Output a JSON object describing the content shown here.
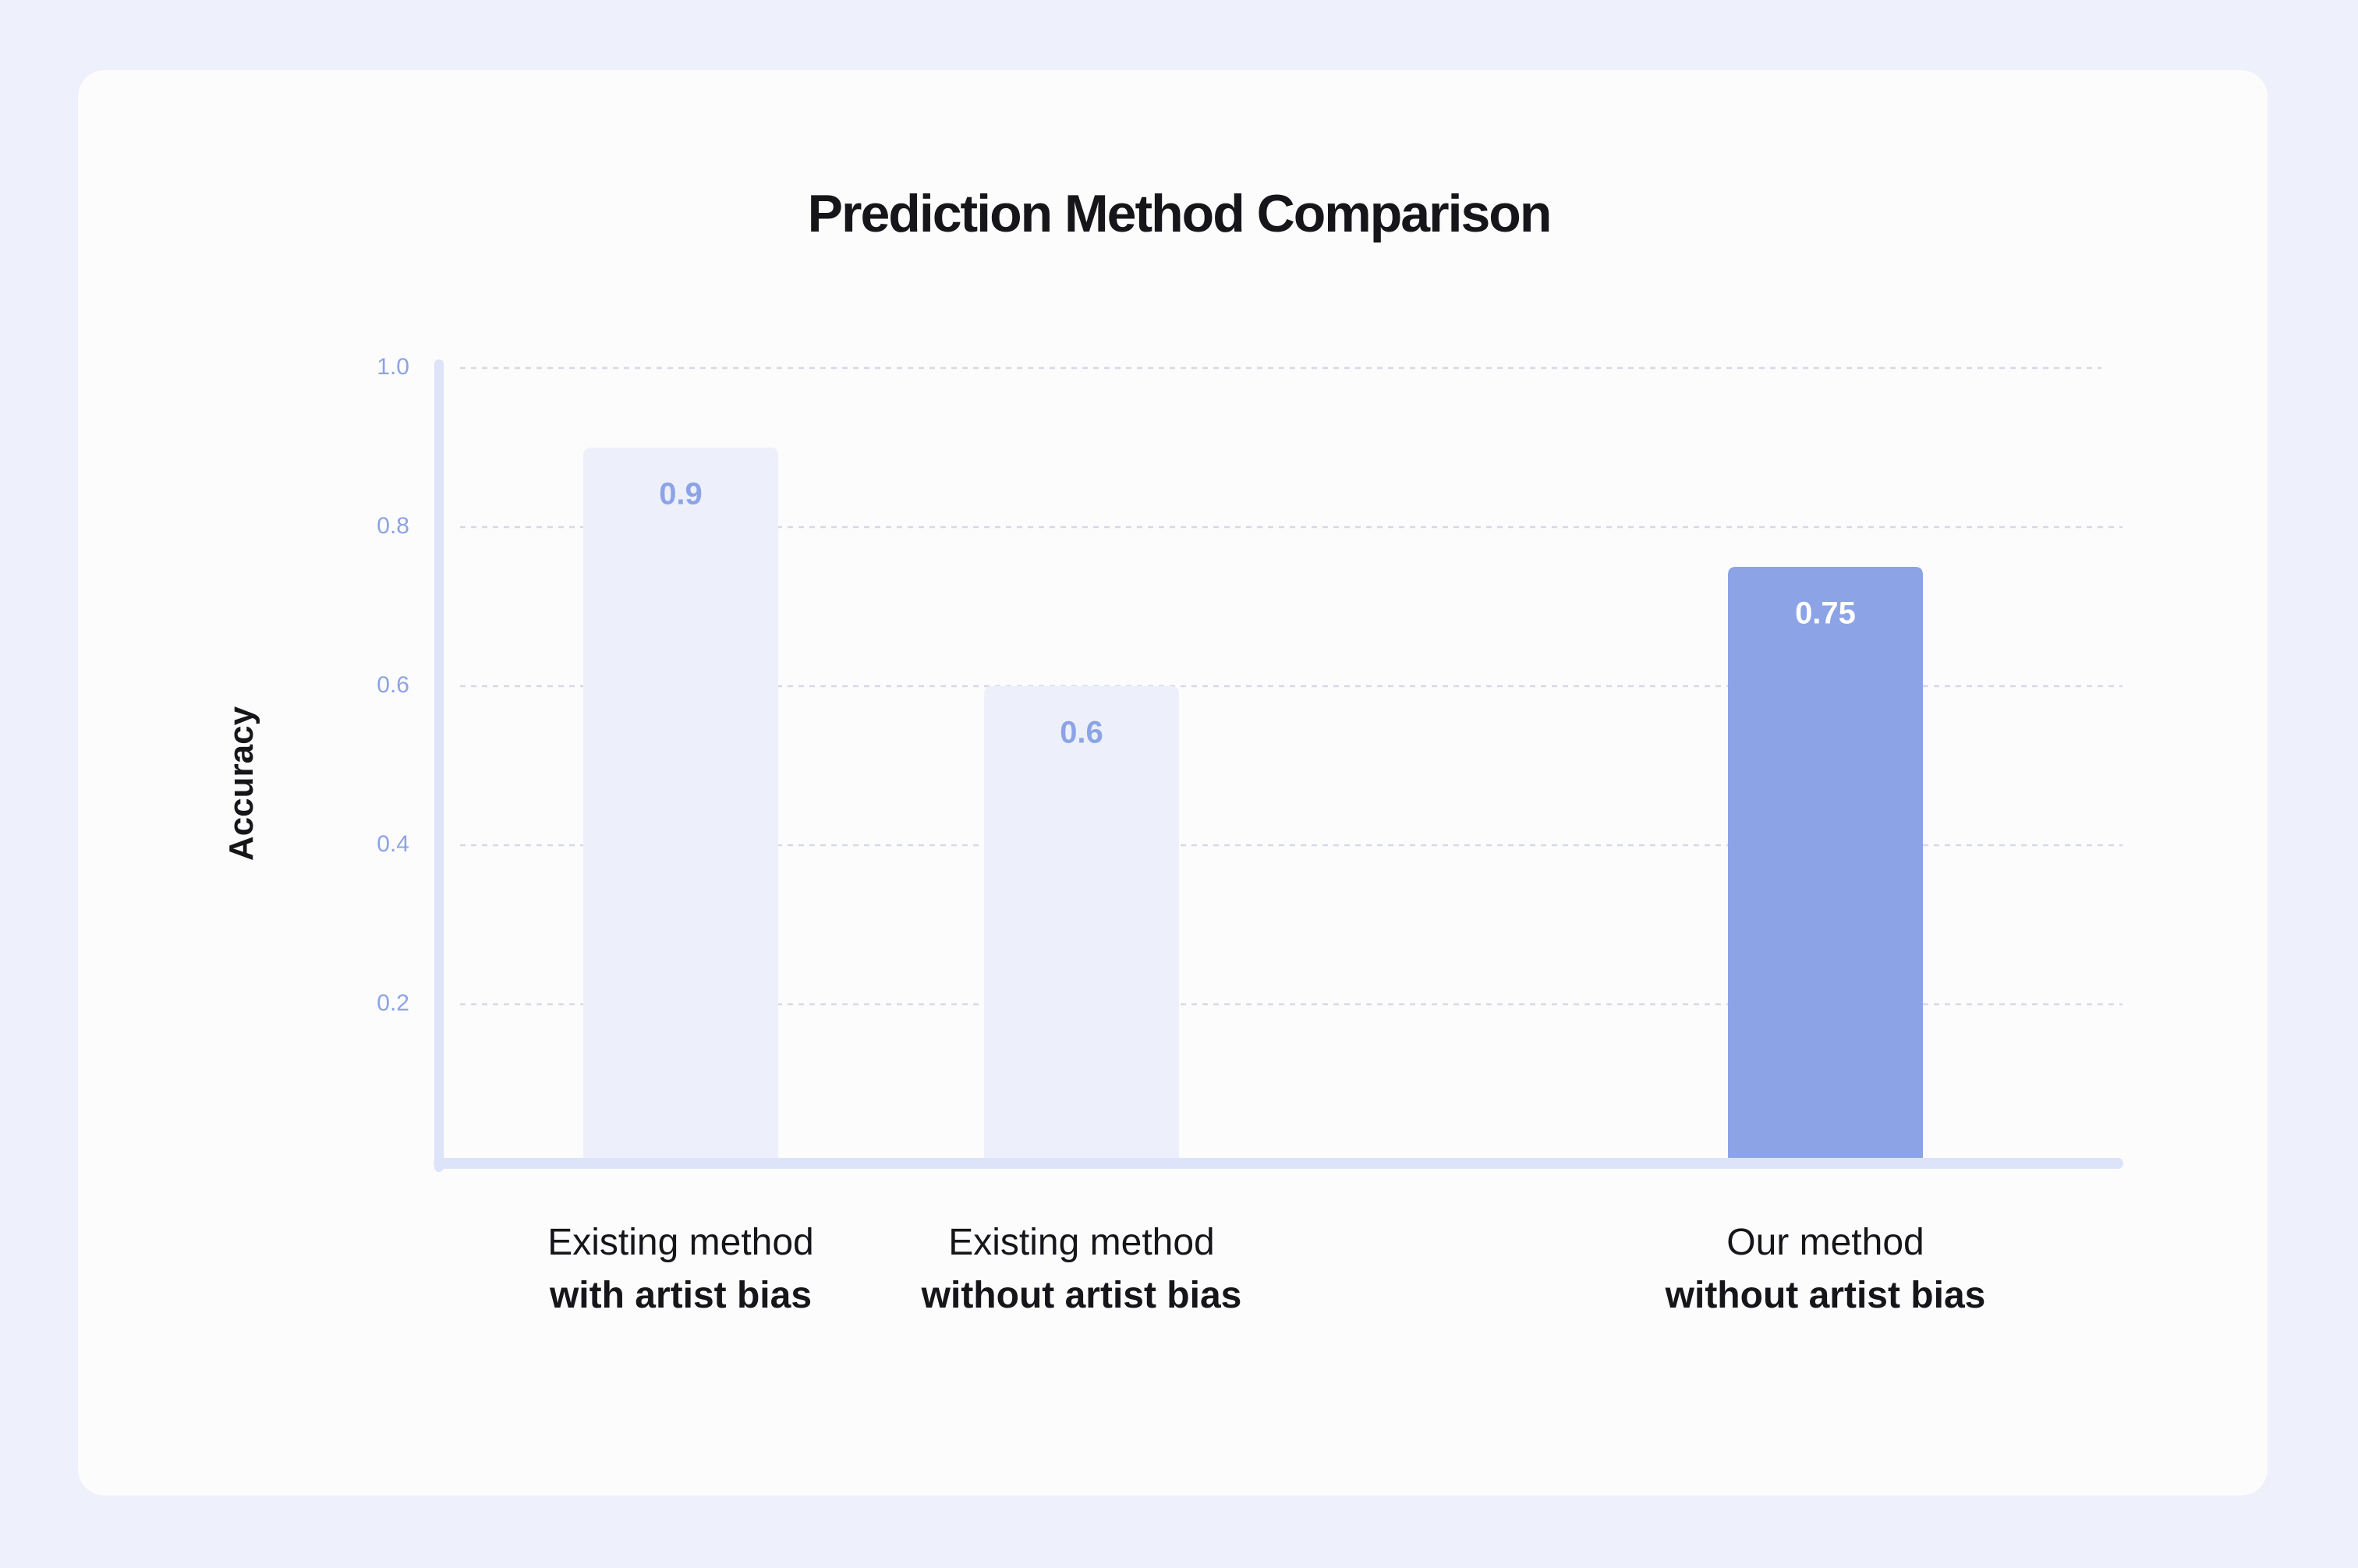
{
  "chart_data": {
    "type": "bar",
    "title": "Prediction Method Comparison",
    "xlabel": "",
    "ylabel": "Accuracy",
    "ylim": [
      0,
      1.0
    ],
    "yticks": [
      "0.2",
      "0.4",
      "0.6",
      "0.8",
      "1.0"
    ],
    "grid": true,
    "categories": [
      {
        "line1": "Existing method",
        "line2": "with artist bias"
      },
      {
        "line1": "Existing method",
        "line2": "without artist bias"
      },
      {
        "line1": "Our method",
        "line2": "without artist bias"
      }
    ],
    "values": [
      0.9,
      0.6,
      0.75
    ],
    "value_labels": [
      "0.9",
      "0.6",
      "0.75"
    ],
    "colors": {
      "bar_muted": "#edf0fb",
      "bar_highlight": "#8ca3e6",
      "label_muted": "#8ca3e6",
      "label_highlight": "#ffffff",
      "axis": "#dde3f8",
      "grid": "#d6d9e3",
      "tick": "#8ca3e6"
    },
    "highlight_index": 2
  }
}
